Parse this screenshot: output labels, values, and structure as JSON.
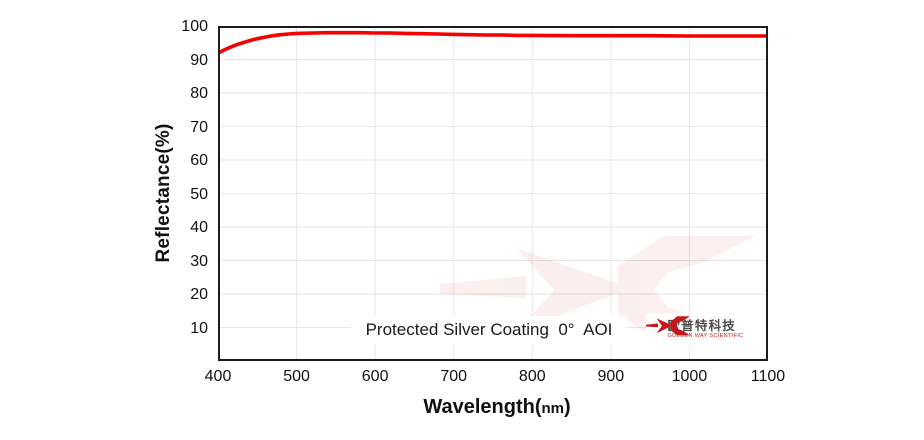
{
  "colors": {
    "curve": "#f40000",
    "logo_red": "#c8161e",
    "axis": "#1c1c1c",
    "grid": "#e6e6e6",
    "text": "#111111",
    "watermark": "#c8161e"
  },
  "chart_data": {
    "type": "line",
    "title": "",
    "xlabel": "Wavelength(nm)",
    "xlabel_parts": [
      "Wavelength(",
      "nm",
      ")"
    ],
    "ylabel": "Reflectance(%)",
    "xlim": [
      400,
      1100
    ],
    "ylim": [
      0,
      100
    ],
    "x_ticks": [
      400,
      500,
      600,
      700,
      800,
      900,
      1000,
      1100
    ],
    "y_ticks": [
      10,
      20,
      30,
      40,
      50,
      60,
      70,
      80,
      90,
      100
    ],
    "grid": true,
    "legend_position": "none",
    "annotation": "Protected Silver Coating  0°  AOI",
    "series": [
      {
        "name": "Protected Silver Coating 0° AOI",
        "color": "#f40000",
        "x": [
          400,
          410,
          420,
          430,
          440,
          450,
          460,
          470,
          480,
          490,
          500,
          520,
          540,
          560,
          580,
          600,
          620,
          640,
          660,
          680,
          700,
          720,
          740,
          760,
          780,
          800,
          850,
          900,
          950,
          1000,
          1050,
          1100
        ],
        "y": [
          91.9,
          93.1,
          94.1,
          94.9,
          95.6,
          96.2,
          96.7,
          97.1,
          97.4,
          97.6,
          97.8,
          97.9,
          98.0,
          98.0,
          98.0,
          97.9,
          97.9,
          97.8,
          97.7,
          97.6,
          97.5,
          97.4,
          97.3,
          97.3,
          97.2,
          97.2,
          97.1,
          97.1,
          97.1,
          97.0,
          97.0,
          97.0
        ]
      }
    ]
  },
  "logo": {
    "cn": "欧普特科技",
    "en": "GOLDEN WAY SCIENTIFIC"
  }
}
